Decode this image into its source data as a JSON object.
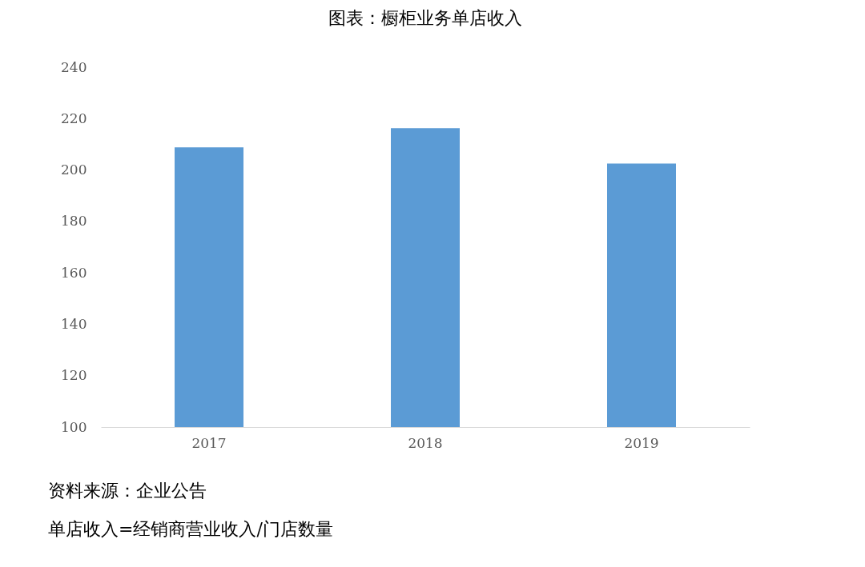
{
  "chart_data": {
    "type": "bar",
    "title": "图表：橱柜业务单店收入",
    "categories": [
      "2017",
      "2018",
      "2019"
    ],
    "values": [
      208.8,
      216.3,
      202.5
    ],
    "color": "#5b9bd5",
    "ylim": [
      100,
      240
    ],
    "yticks": [
      100,
      120,
      140,
      160,
      180,
      200,
      220,
      240
    ],
    "grid": false,
    "annotations": [
      "资料来源：企业公告",
      "单店收入=经销商营业收入/门店数量"
    ]
  }
}
